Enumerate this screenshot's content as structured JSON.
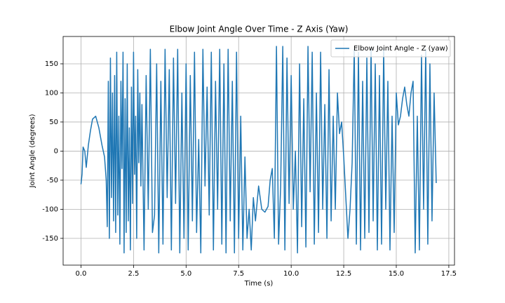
{
  "chart_data": {
    "type": "line",
    "title": "Elbow Joint Angle Over Time - Z Axis (Yaw)",
    "x_label": "Time (s)",
    "y_label": "Joint Angle (degrees)",
    "x": [
      0.0,
      0.05,
      0.1,
      0.18,
      0.25,
      0.35,
      0.45,
      0.55,
      0.7,
      0.85,
      1.0,
      1.12,
      1.2,
      1.25,
      1.3,
      1.35,
      1.4,
      1.45,
      1.5,
      1.55,
      1.6,
      1.65,
      1.7,
      1.75,
      1.8,
      1.85,
      1.9,
      1.95,
      2.0,
      2.05,
      2.1,
      2.15,
      2.2,
      2.25,
      2.3,
      2.35,
      2.4,
      2.45,
      2.5,
      2.55,
      2.6,
      2.65,
      2.7,
      2.75,
      2.8,
      2.85,
      2.9,
      3.0,
      3.1,
      3.2,
      3.3,
      3.4,
      3.5,
      3.6,
      3.7,
      3.8,
      3.9,
      4.0,
      4.1,
      4.2,
      4.3,
      4.4,
      4.5,
      4.6,
      4.7,
      4.8,
      4.9,
      5.0,
      5.1,
      5.2,
      5.3,
      5.4,
      5.5,
      5.6,
      5.7,
      5.8,
      5.9,
      6.0,
      6.1,
      6.2,
      6.3,
      6.4,
      6.5,
      6.6,
      6.7,
      6.8,
      6.9,
      7.0,
      7.1,
      7.2,
      7.3,
      7.4,
      7.5,
      7.6,
      7.7,
      7.8,
      7.9,
      8.0,
      8.1,
      8.2,
      8.3,
      8.45,
      8.6,
      8.75,
      8.9,
      9.0,
      9.1,
      9.2,
      9.3,
      9.4,
      9.5,
      9.6,
      9.7,
      9.8,
      9.9,
      10.0,
      10.1,
      10.2,
      10.3,
      10.4,
      10.5,
      10.6,
      10.7,
      10.8,
      10.9,
      11.0,
      11.1,
      11.2,
      11.3,
      11.4,
      11.5,
      11.6,
      11.7,
      11.8,
      11.9,
      12.0,
      12.1,
      12.2,
      12.3,
      12.4,
      12.5,
      12.6,
      12.7,
      12.8,
      12.9,
      13.0,
      13.1,
      13.2,
      13.3,
      13.4,
      13.5,
      13.6,
      13.7,
      13.8,
      13.9,
      14.0,
      14.1,
      14.2,
      14.3,
      14.4,
      14.5,
      14.6,
      14.7,
      14.8,
      14.9,
      15.0,
      15.1,
      15.2,
      15.3,
      15.4,
      15.5,
      15.6,
      15.7,
      15.8,
      15.9,
      16.0,
      16.1,
      16.2,
      16.3,
      16.4,
      16.5,
      16.6,
      16.7,
      16.8,
      16.9
    ],
    "series": [
      {
        "name": "Elbow Joint Angle - Z (yaw)",
        "color": "#1f77b4",
        "values": [
          -57,
          -40,
          7,
          0,
          -28,
          10,
          35,
          55,
          60,
          40,
          10,
          -10,
          -50,
          -130,
          120,
          -150,
          160,
          -80,
          100,
          -120,
          130,
          -140,
          170,
          -110,
          60,
          -160,
          120,
          -30,
          170,
          -175,
          90,
          -140,
          150,
          -120,
          40,
          -170,
          110,
          -90,
          170,
          -40,
          60,
          -150,
          140,
          -20,
          100,
          -60,
          80,
          -170,
          130,
          -100,
          175,
          -140,
          -110,
          150,
          -175,
          120,
          -160,
          175,
          -80,
          140,
          -170,
          160,
          -90,
          175,
          -175,
          100,
          -150,
          150,
          -170,
          130,
          -120,
          170,
          -140,
          20,
          -175,
          175,
          -60,
          110,
          -110,
          170,
          -170,
          120,
          -100,
          175,
          -160,
          150,
          -175,
          175,
          -120,
          120,
          -175,
          170,
          -150,
          60,
          -170,
          -10,
          -150,
          -100,
          -170,
          -80,
          -120,
          -60,
          -100,
          -105,
          -95,
          -50,
          -30,
          -150,
          180,
          -160,
          -60,
          180,
          -170,
          160,
          -90,
          130,
          -100,
          0,
          -175,
          150,
          -130,
          90,
          -165,
          180,
          -70,
          170,
          -160,
          100,
          -140,
          170,
          -100,
          80,
          -150,
          140,
          -120,
          60,
          -100,
          100,
          30,
          50,
          -10,
          -80,
          -150,
          -100,
          -20,
          175,
          -160,
          170,
          -170,
          120,
          -150,
          160,
          -140,
          175,
          -120,
          150,
          -170,
          130,
          -160,
          175,
          -100,
          120,
          -170,
          60,
          -140,
          100,
          45,
          60,
          90,
          110,
          80,
          60,
          100,
          120,
          -175,
          60,
          -170,
          165,
          -100,
          175,
          -160,
          150,
          -120,
          100,
          -55
        ]
      }
    ],
    "xlim": [
      -0.85,
      17.77
    ],
    "ylim": [
      -196,
      197
    ],
    "xticks": [
      {
        "value": 0,
        "label": "0.0"
      },
      {
        "value": 2.5,
        "label": "2.5"
      },
      {
        "value": 5,
        "label": "5.0"
      },
      {
        "value": 7.5,
        "label": "7.5"
      },
      {
        "value": 10,
        "label": "10.0"
      },
      {
        "value": 12.5,
        "label": "12.5"
      },
      {
        "value": 15,
        "label": "15.0"
      },
      {
        "value": 17.5,
        "label": "17.5"
      }
    ],
    "yticks": [
      -150,
      -100,
      -50,
      0,
      50,
      100,
      150
    ],
    "grid": true,
    "legend": "upper right"
  }
}
